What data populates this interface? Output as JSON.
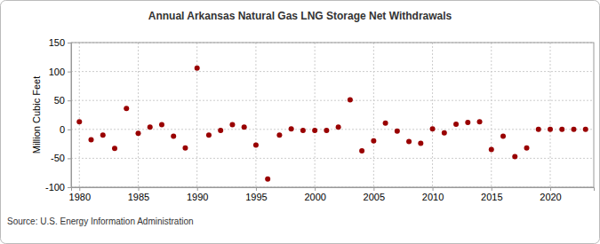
{
  "chart_data": {
    "type": "scatter",
    "title": "Annual Arkansas Natural Gas LNG Storage Net Withdrawals",
    "y_label": "Million Cubic Feet",
    "source": "Source: U.S. Energy Information Administration",
    "x": [
      1980,
      1981,
      1982,
      1983,
      1984,
      1985,
      1986,
      1987,
      1988,
      1989,
      1990,
      1991,
      1992,
      1993,
      1994,
      1995,
      1996,
      1997,
      1998,
      1999,
      2000,
      2001,
      2002,
      2003,
      2004,
      2005,
      2006,
      2007,
      2008,
      2009,
      2010,
      2011,
      2012,
      2013,
      2014,
      2015,
      2016,
      2017,
      2018,
      2019,
      2020,
      2021,
      2022,
      2023
    ],
    "values": [
      13,
      -18,
      -10,
      -33,
      36,
      -7,
      4,
      8,
      -12,
      -32,
      106,
      -10,
      -2,
      8,
      4,
      -27,
      -86,
      -10,
      1,
      -2,
      -2,
      -2,
      4,
      51,
      -37,
      -20,
      11,
      -3,
      -21,
      -24,
      1,
      -6,
      9,
      12,
      13,
      -35,
      -12,
      -47,
      -32,
      0,
      0,
      0,
      0,
      0
    ],
    "color": "#990000",
    "marker": "circle",
    "xlim": [
      1979.3,
      2023.7
    ],
    "xticks": [
      1980,
      1985,
      1990,
      1995,
      2000,
      2005,
      2010,
      2015,
      2020
    ],
    "ylim": [
      -100,
      150
    ],
    "yticks": [
      -100,
      -50,
      0,
      50,
      100,
      150
    ],
    "grid": true
  }
}
